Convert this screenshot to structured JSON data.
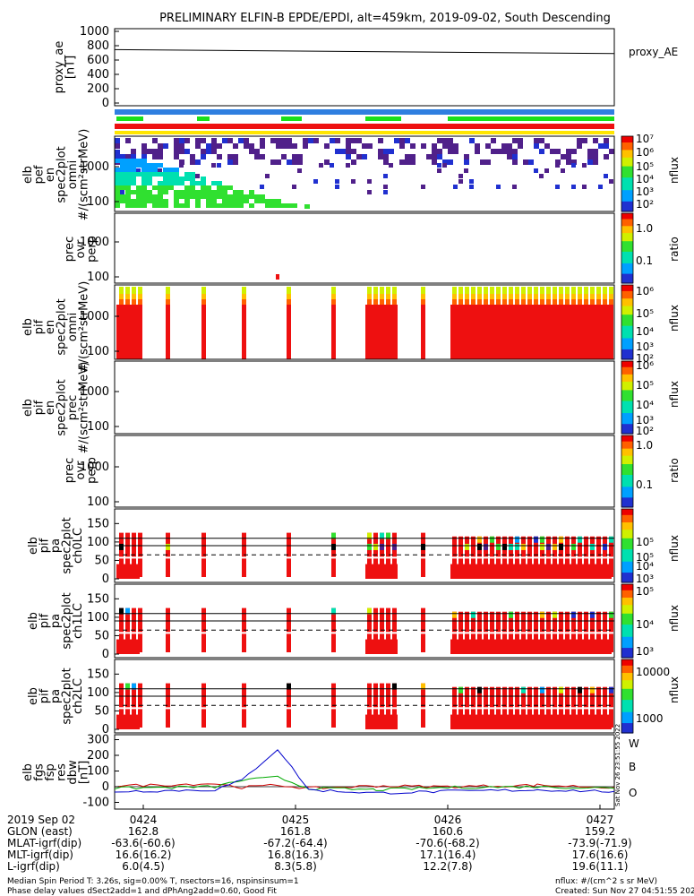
{
  "title": "PRELIMINARY ELFIN-B EPDE/EPDI, alt=459km, 2019-09-02, South Descending",
  "colors": {
    "bar_blue": "#2f7fe0",
    "bar_green": "#19e01a",
    "bar_red": "#ee1010",
    "bar_yellow": "#ffe600",
    "W": "#cc0000",
    "B": "#00aa00",
    "O": "#0000cc"
  },
  "panels": {
    "ae": {
      "ylabel": [
        "proxy_ae",
        "[nT]"
      ],
      "ticks": [
        "1000",
        "800",
        "600",
        "400",
        "200",
        "0"
      ],
      "legend": "proxy_AE"
    },
    "elb_perf": {
      "ylabel": [
        "elb",
        "pef",
        "en",
        "spec2plot",
        "omni",
        "#/(scm²strMeV)"
      ],
      "ticks": [
        "1000",
        "100"
      ],
      "cb_ticks": [
        "10⁷",
        "10⁶",
        "10⁵",
        "10⁴",
        "10³",
        "10²"
      ],
      "cb_label": "nflux"
    },
    "prec_perp1": {
      "ylabel": [
        "prec",
        "ovr",
        "perp"
      ],
      "ticks": [
        "1000",
        "100"
      ],
      "cb_ticks": [
        "1.0",
        "0.1"
      ],
      "cb_label": "ratio"
    },
    "elb_pif": {
      "ylabel": [
        "elb",
        "pif",
        "en",
        "spec2plot",
        "omni",
        "#/(scm²strMeV)"
      ],
      "ticks": [
        "1000",
        "100"
      ],
      "cb_ticks": [
        "10⁶",
        "10⁵",
        "10⁴",
        "10³",
        "10²"
      ],
      "cb_label": "nflux"
    },
    "elb_pif_prec": {
      "ylabel": [
        "elb",
        "pif",
        "en",
        "spec2plot",
        "prec",
        "#/(scm²strMeV)"
      ],
      "ticks": [
        "1000",
        "100"
      ],
      "cb_ticks": [
        "10⁶",
        "10⁵",
        "10⁴",
        "10³",
        "10²"
      ],
      "cb_label": "nflux"
    },
    "prec_perp2": {
      "ylabel": [
        "prec",
        "ovr",
        "perp"
      ],
      "ticks": [
        "1000",
        "100"
      ],
      "cb_ticks": [
        "1.0",
        "0.1"
      ],
      "cb_label": "ratio"
    },
    "ch0": {
      "ylabel": [
        "elb",
        "pif",
        "pa",
        "spec2plot",
        "ch0LC"
      ],
      "ticks": [
        "150",
        "100",
        "50",
        "0"
      ],
      "cb_ticks": [
        "10⁵",
        "10⁵",
        "10⁴",
        "10³"
      ],
      "cb_label": "nflux"
    },
    "ch1": {
      "ylabel": [
        "elb",
        "pif",
        "pa",
        "spec2plot",
        "ch1LC"
      ],
      "ticks": [
        "150",
        "100",
        "50",
        "0"
      ],
      "cb_ticks": [
        "10⁵",
        "10⁴",
        "10³"
      ],
      "cb_label": "nflux"
    },
    "ch2": {
      "ylabel": [
        "elb",
        "pif",
        "pa",
        "spec2plot",
        "ch2LC"
      ],
      "ticks": [
        "150",
        "100",
        "50",
        "0"
      ],
      "cb_ticks": [
        "10000",
        "1000"
      ],
      "cb_label": "nflux"
    },
    "fgs": {
      "ylabel": [
        "elb",
        "fgs",
        "fsp",
        "res",
        "dbw",
        "[nT]"
      ],
      "ticks": [
        "300",
        "200",
        "100",
        "0",
        "-100"
      ],
      "legend": [
        "W",
        "B",
        "O"
      ]
    }
  },
  "ephemeris": {
    "rows": [
      {
        "label": "2019 Sep 02",
        "values": [
          "0424",
          "0425",
          "0426",
          "0427"
        ]
      },
      {
        "label": "GLON (east)",
        "values": [
          "162.8",
          "161.8",
          "160.6",
          "159.2"
        ]
      },
      {
        "label": "MLAT-igrf(dip)",
        "values": [
          "-63.6(-60.6)",
          "-67.2(-64.4)",
          "-70.6(-68.2)",
          "-73.9(-71.9)"
        ]
      },
      {
        "label": "MLT-igrf(dip)",
        "values": [
          "16.6(16.2)",
          "16.8(16.3)",
          "17.1(16.4)",
          "17.6(16.6)"
        ]
      },
      {
        "label": "L-igrf(dip)",
        "values": [
          "6.0(4.5)",
          "8.3(5.8)",
          "12.2(7.8)",
          "19.6(11.1)"
        ]
      }
    ]
  },
  "footer": {
    "left1": "Median Spin Period T: 3.26s, sig=0.00% T, nsectors=16, nspinsinsum=1",
    "left2": "Phase delay values dSect2add=1 and dPhAng2add=0.60, Good Fit",
    "right1": "nflux: #/(cm^2 s sr MeV)",
    "right2": "Created: Sun Nov 27 04:51:55 2022",
    "vertical": "Sat Nov 26 23:51:55 2022"
  },
  "chart_data": [
    {
      "type": "line",
      "title": "proxy_ae",
      "ylabel": "proxy_ae [nT]",
      "ylim": [
        0,
        1000
      ],
      "x": [
        "04:23:48",
        "04:27:05"
      ],
      "series": [
        {
          "name": "proxy_AE",
          "values": [
            745,
            690
          ]
        }
      ]
    },
    {
      "type": "heatmap",
      "title": "elb pef en spec2plot omni",
      "ylabel": "#/(scm²strMeV)",
      "scale": "log",
      "ylim": [
        60,
        7000
      ],
      "colorbar": "nflux",
      "crange": [
        "10^2",
        "10^7"
      ]
    },
    {
      "type": "heatmap",
      "title": "prec ovr perp",
      "scale": "log",
      "colorbar": "ratio",
      "crange": [
        "0.1",
        "1.0"
      ]
    },
    {
      "type": "heatmap",
      "title": "elb pif en spec2plot omni",
      "scale": "log",
      "colorbar": "nflux",
      "crange": [
        "10^2",
        "10^6"
      ]
    },
    {
      "type": "heatmap",
      "title": "elb pif en spec2plot prec",
      "scale": "log",
      "colorbar": "nflux",
      "crange": [
        "10^2",
        "10^6"
      ]
    },
    {
      "type": "heatmap",
      "title": "prec ovr perp",
      "scale": "log",
      "colorbar": "ratio",
      "crange": [
        "0.1",
        "1.0"
      ]
    },
    {
      "type": "heatmap",
      "title": "elb pif pa spec2plot ch0LC",
      "ylim": [
        0,
        180
      ],
      "colorbar": "nflux",
      "crange": [
        "10^3",
        "10^5"
      ]
    },
    {
      "type": "heatmap",
      "title": "elb pif pa spec2plot ch1LC",
      "ylim": [
        0,
        180
      ],
      "colorbar": "nflux",
      "crange": [
        "10^3",
        "10^5"
      ]
    },
    {
      "type": "heatmap",
      "title": "elb pif pa spec2plot ch2LC",
      "ylim": [
        0,
        180
      ],
      "colorbar": "nflux",
      "crange": [
        "1000",
        "10000"
      ]
    },
    {
      "type": "line",
      "title": "elb fgs fsp res dbw",
      "ylabel": "[nT]",
      "ylim": [
        -120,
        320
      ],
      "x": [
        "04:23:48",
        "04:24:15",
        "04:24:45",
        "04:25:00",
        "04:25:10",
        "04:25:30",
        "04:26:00",
        "04:26:30",
        "04:27:00"
      ],
      "series": [
        {
          "name": "W",
          "values": [
            5,
            20,
            -5,
            10,
            -10,
            5,
            0,
            10,
            -5
          ]
        },
        {
          "name": "B",
          "values": [
            -10,
            0,
            40,
            60,
            -10,
            -20,
            -5,
            0,
            -10
          ]
        },
        {
          "name": "O",
          "values": [
            -30,
            -20,
            40,
            240,
            -20,
            -40,
            -30,
            -20,
            -30
          ]
        }
      ]
    }
  ]
}
